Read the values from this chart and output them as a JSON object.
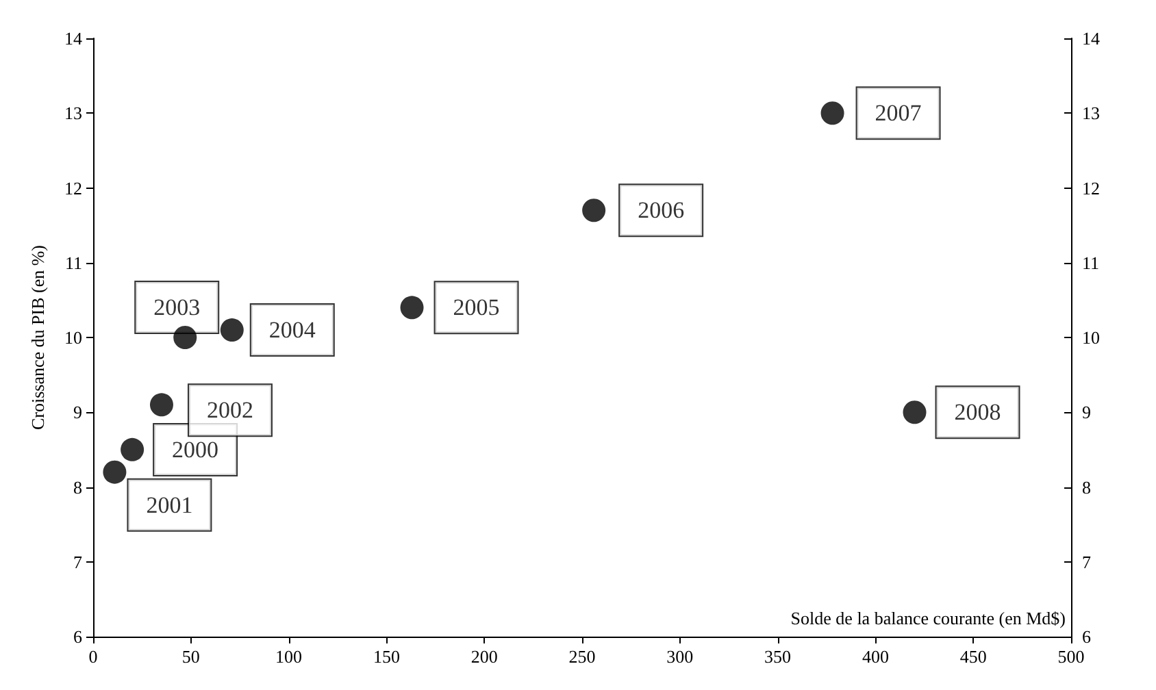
{
  "chart_data": {
    "type": "scatter",
    "xlabel": "Solde de la balance courante (en Md$)",
    "ylabel": "Croissance du PIB (en %)",
    "x": [
      20,
      11,
      35,
      47,
      71,
      163,
      256,
      378,
      420
    ],
    "series": [
      {
        "color": "#000000",
        "values": [
          8.5,
          8.2,
          9.1,
          10.0,
          10.1,
          10.4,
          11.7,
          13.0,
          9.0
        ]
      }
    ],
    "annotations": [
      {
        "text": "2000",
        "x": 20,
        "y": 8.5
      },
      {
        "text": "2001",
        "x": 11,
        "y": 8.2
      },
      {
        "text": "2002",
        "x": 35,
        "y": 9.1
      },
      {
        "text": "2003",
        "x": 47,
        "y": 10.0
      },
      {
        "text": "2004",
        "x": 71,
        "y": 10.1
      },
      {
        "text": "2005",
        "x": 163,
        "y": 10.4
      },
      {
        "text": "2006",
        "x": 256,
        "y": 11.7
      },
      {
        "text": "2007",
        "x": 378,
        "y": 13.0
      },
      {
        "text": "2008",
        "x": 420,
        "y": 9.0
      }
    ],
    "xlim": [
      0,
      500
    ],
    "xticks": [
      0,
      50,
      100,
      150,
      200,
      250,
      300,
      350,
      400,
      450,
      500
    ],
    "ylim": [
      6,
      14
    ],
    "yticks": [
      6,
      7,
      8,
      9,
      10,
      11,
      12,
      13,
      14
    ],
    "y2lim": [
      6,
      14
    ],
    "y2ticks": [
      6,
      7,
      8,
      9,
      10,
      11,
      12,
      13,
      14
    ],
    "marker": "circle"
  }
}
